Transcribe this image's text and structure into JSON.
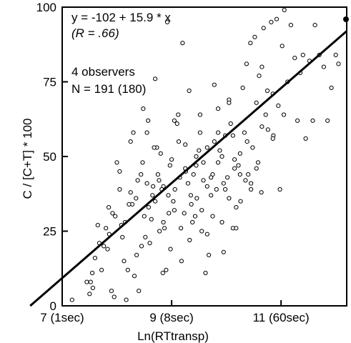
{
  "chart_data": {
    "type": "scatter",
    "title": "",
    "xlabel": "Ln(RTtransp)",
    "ylabel": "C / [C+T] * 100",
    "xlim": [
      7,
      12.2
    ],
    "ylim": [
      0,
      100
    ],
    "x_ticks": [
      {
        "value": 7,
        "label": "7 (1sec)"
      },
      {
        "value": 9,
        "label": "9 (8sec)"
      },
      {
        "value": 11,
        "label": "11 (60sec)"
      }
    ],
    "y_ticks": [
      {
        "value": 0,
        "label": "0"
      },
      {
        "value": 25,
        "label": "25"
      },
      {
        "value": 50,
        "label": "50"
      },
      {
        "value": 75,
        "label": "75"
      },
      {
        "value": 100,
        "label": "100"
      }
    ],
    "grid": false,
    "annotations": {
      "equation": "y = -102 + 15.9 * x",
      "correlation": "(R = .66)",
      "observers": "4 observers",
      "n": "N = 191 (180)"
    },
    "regression": {
      "intercept": -102,
      "slope": 15.9
    },
    "marker_color": "#000000",
    "series": [
      {
        "marker": "open-circle",
        "points": [
          [
            7.18,
            2
          ],
          [
            7.45,
            8
          ],
          [
            7.52,
            8
          ],
          [
            7.5,
            4
          ],
          [
            7.56,
            6
          ],
          [
            7.65,
            27
          ],
          [
            7.6,
            16
          ],
          [
            7.72,
            12
          ],
          [
            7.76,
            20
          ],
          [
            7.83,
            19
          ],
          [
            7.86,
            24
          ],
          [
            7.9,
            5
          ],
          [
            7.95,
            3
          ],
          [
            7.97,
            30
          ],
          [
            8.0,
            48
          ],
          [
            8.05,
            39
          ],
          [
            8.1,
            23
          ],
          [
            8.13,
            15
          ],
          [
            8.17,
            2
          ],
          [
            8.2,
            12
          ],
          [
            8.25,
            38
          ],
          [
            8.28,
            34
          ],
          [
            8.3,
            58
          ],
          [
            8.32,
            10
          ],
          [
            8.36,
            17
          ],
          [
            8.4,
            5
          ],
          [
            8.44,
            44
          ],
          [
            8.47,
            48
          ],
          [
            8.5,
            30
          ],
          [
            8.55,
            58
          ],
          [
            8.57,
            62
          ],
          [
            8.6,
            21
          ],
          [
            8.63,
            29
          ],
          [
            8.66,
            40
          ],
          [
            8.7,
            35
          ],
          [
            8.73,
            53
          ],
          [
            8.77,
            42
          ],
          [
            8.8,
            51
          ],
          [
            8.84,
            11
          ],
          [
            8.87,
            26
          ],
          [
            8.9,
            12
          ],
          [
            8.94,
            37
          ],
          [
            8.97,
            47
          ],
          [
            9.0,
            49
          ],
          [
            9.03,
            35
          ],
          [
            9.06,
            39
          ],
          [
            9.1,
            61
          ],
          [
            9.13,
            55
          ],
          [
            9.17,
            26
          ],
          [
            9.2,
            88
          ],
          [
            9.23,
            31
          ],
          [
            9.26,
            45
          ],
          [
            9.3,
            41
          ],
          [
            9.33,
            22
          ],
          [
            9.36,
            34
          ],
          [
            9.4,
            44
          ],
          [
            9.43,
            30
          ],
          [
            9.46,
            36
          ],
          [
            9.5,
            52
          ],
          [
            9.52,
            64
          ],
          [
            9.55,
            32
          ],
          [
            9.58,
            48
          ],
          [
            9.62,
            11
          ],
          [
            9.65,
            24
          ],
          [
            9.68,
            17
          ],
          [
            9.72,
            37
          ],
          [
            9.75,
            44
          ],
          [
            9.78,
            55
          ],
          [
            9.82,
            39
          ],
          [
            9.85,
            66
          ],
          [
            9.88,
            52
          ],
          [
            9.92,
            28
          ],
          [
            9.95,
            18
          ],
          [
            9.98,
            57
          ],
          [
            10.02,
            43
          ],
          [
            10.05,
            69
          ],
          [
            10.08,
            61
          ],
          [
            10.12,
            26
          ],
          [
            10.15,
            49
          ],
          [
            10.18,
            33
          ],
          [
            10.22,
            47
          ],
          [
            10.26,
            35
          ],
          [
            10.3,
            73
          ],
          [
            10.33,
            58
          ],
          [
            10.37,
            81
          ],
          [
            10.4,
            44
          ],
          [
            10.44,
            88
          ],
          [
            10.48,
            53
          ],
          [
            10.52,
            90
          ],
          [
            10.55,
            46
          ],
          [
            10.6,
            77
          ],
          [
            10.64,
            38
          ],
          [
            10.68,
            93
          ],
          [
            10.72,
            64
          ],
          [
            10.76,
            59
          ],
          [
            10.82,
            95
          ],
          [
            10.86,
            57
          ],
          [
            10.92,
            96
          ],
          [
            10.98,
            39
          ],
          [
            11.02,
            87
          ],
          [
            11.06,
            100
          ],
          [
            11.12,
            75
          ],
          [
            11.18,
            94
          ],
          [
            11.25,
            83
          ],
          [
            11.3,
            62
          ],
          [
            11.35,
            78
          ],
          [
            11.4,
            84
          ],
          [
            11.45,
            56
          ],
          [
            11.52,
            82
          ],
          [
            11.58,
            62
          ],
          [
            11.62,
            94
          ],
          [
            11.7,
            84
          ],
          [
            11.78,
            80
          ],
          [
            11.85,
            62
          ],
          [
            11.92,
            73
          ],
          [
            12.0,
            84
          ],
          [
            12.05,
            81
          ],
          [
            8.92,
            95
          ],
          [
            8.7,
            76
          ],
          [
            8.48,
            66
          ],
          [
            8.25,
            55
          ],
          [
            8.05,
            45
          ],
          [
            7.85,
            33
          ],
          [
            7.68,
            21
          ],
          [
            7.55,
            11
          ],
          [
            8.85,
            28
          ],
          [
            9.05,
            32
          ],
          [
            9.25,
            46
          ],
          [
            9.45,
            50
          ],
          [
            9.65,
            40
          ],
          [
            9.85,
            58
          ],
          [
            10.05,
            36
          ],
          [
            10.25,
            51
          ],
          [
            10.45,
            41
          ],
          [
            10.65,
            60
          ],
          [
            10.85,
            56
          ],
          [
            8.35,
            36
          ],
          [
            8.55,
            41
          ],
          [
            8.75,
            44
          ],
          [
            8.95,
            31
          ],
          [
            9.15,
            43
          ],
          [
            9.35,
            37
          ],
          [
            9.55,
            25
          ],
          [
            9.75,
            30
          ],
          [
            9.95,
            41
          ],
          [
            10.15,
            46
          ],
          [
            10.35,
            42
          ],
          [
            10.55,
            68
          ],
          [
            10.75,
            72
          ],
          [
            10.95,
            67
          ],
          [
            8.15,
            28
          ],
          [
            8.45,
            20
          ],
          [
            8.65,
            37
          ],
          [
            8.85,
            40
          ],
          [
            9.05,
            62
          ],
          [
            9.25,
            54
          ],
          [
            9.45,
            47
          ],
          [
            9.65,
            53
          ],
          [
            9.85,
            48
          ],
          [
            10.05,
            68
          ],
          [
            10.25,
            44
          ],
          [
            10.45,
            39
          ],
          [
            10.65,
            80
          ],
          [
            10.85,
            71
          ],
          [
            11.05,
            64
          ],
          [
            8.58,
            33
          ],
          [
            8.78,
            25
          ],
          [
            8.98,
            19
          ],
          [
            9.18,
            15
          ],
          [
            9.38,
            28
          ],
          [
            9.58,
            42
          ],
          [
            9.78,
            74
          ],
          [
            9.98,
            39
          ],
          [
            10.18,
            26
          ],
          [
            10.38,
            55
          ],
          [
            10.58,
            48
          ],
          [
            7.8,
            26
          ],
          [
            7.92,
            31
          ],
          [
            8.08,
            27
          ],
          [
            8.22,
            34
          ],
          [
            8.38,
            42
          ],
          [
            8.52,
            23
          ],
          [
            8.68,
            53
          ],
          [
            8.82,
            39
          ],
          [
            9.12,
            64
          ],
          [
            9.32,
            72
          ],
          [
            9.52,
            58
          ],
          [
            9.72,
            43
          ],
          [
            9.92,
            50
          ],
          [
            10.12,
            57
          ]
        ]
      }
    ],
    "outlier_point": {
      "x": 12.3,
      "y": 100,
      "marker": "filled-circle"
    }
  }
}
